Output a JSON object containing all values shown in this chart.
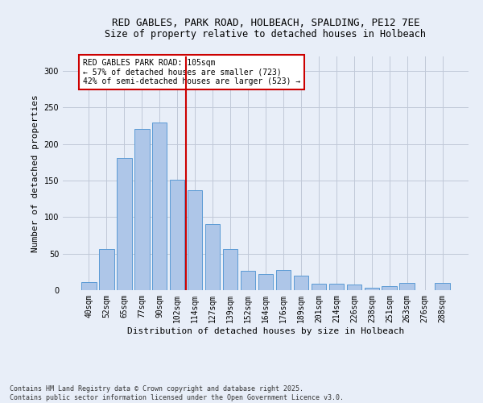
{
  "title_line1": "RED GABLES, PARK ROAD, HOLBEACH, SPALDING, PE12 7EE",
  "title_line2": "Size of property relative to detached houses in Holbeach",
  "xlabel": "Distribution of detached houses by size in Holbeach",
  "ylabel": "Number of detached properties",
  "categories": [
    "40sqm",
    "52sqm",
    "65sqm",
    "77sqm",
    "90sqm",
    "102sqm",
    "114sqm",
    "127sqm",
    "139sqm",
    "152sqm",
    "164sqm",
    "176sqm",
    "189sqm",
    "201sqm",
    "214sqm",
    "226sqm",
    "238sqm",
    "251sqm",
    "263sqm",
    "276sqm",
    "288sqm"
  ],
  "values": [
    11,
    56,
    181,
    221,
    230,
    151,
    137,
    90,
    56,
    26,
    22,
    28,
    20,
    9,
    9,
    8,
    3,
    5,
    10,
    0,
    10
  ],
  "bar_color": "#aec6e8",
  "bar_edge_color": "#5b9bd5",
  "vline_x": 5.5,
  "vline_color": "#cc0000",
  "annotation_text": "RED GABLES PARK ROAD: 105sqm\n← 57% of detached houses are smaller (723)\n42% of semi-detached houses are larger (523) →",
  "annotation_box_color": "#ffffff",
  "annotation_box_edge": "#cc0000",
  "ylim": [
    0,
    320
  ],
  "yticks": [
    0,
    50,
    100,
    150,
    200,
    250,
    300
  ],
  "grid_color": "#c0c8d8",
  "bg_color": "#e8eef8",
  "footnote": "Contains HM Land Registry data © Crown copyright and database right 2025.\nContains public sector information licensed under the Open Government Licence v3.0.",
  "title_fontsize": 9,
  "subtitle_fontsize": 8.5,
  "axis_fontsize": 8,
  "tick_fontsize": 7,
  "annot_fontsize": 7,
  "footnote_fontsize": 6
}
